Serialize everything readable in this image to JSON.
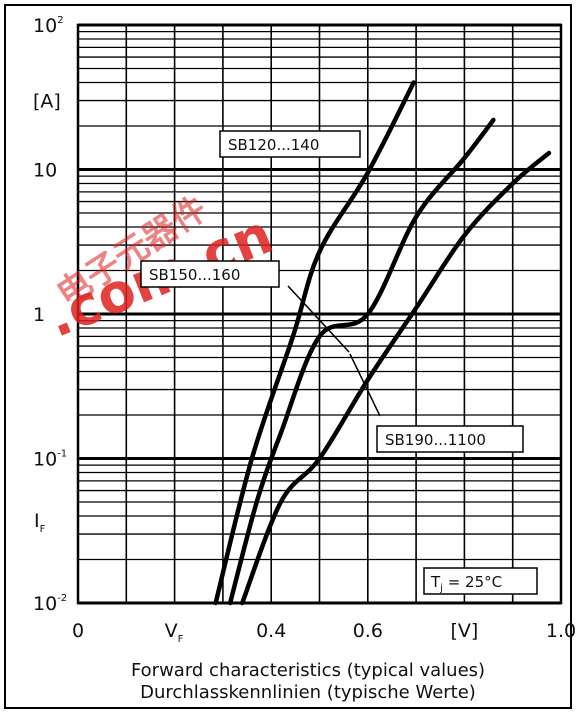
{
  "chart_data": {
    "type": "line",
    "y_scale": "log",
    "grid": true,
    "xlim": [
      0,
      1.0
    ],
    "ylim": [
      0.01,
      100
    ],
    "x_ticks": [
      "0",
      "0.4",
      "0.6",
      "[V]",
      "1.0"
    ],
    "x_unit_label": "V",
    "x_unit_sub": "F",
    "y_ticks": [
      {
        "base": "10",
        "exp": "2"
      },
      {
        "base": "[A]",
        "exp": ""
      },
      {
        "base": "10",
        "exp": ""
      },
      {
        "base": "1",
        "exp": ""
      },
      {
        "base": "10",
        "exp": "-1"
      },
      {
        "base": "10",
        "exp": "-2"
      }
    ],
    "y_unit_label": "I",
    "y_unit_sub": "F",
    "caption_line1": "Forward characteristics (typical values)",
    "caption_line2": "Durchlasskennlinien (typische Werte)",
    "annotation": {
      "prefix": "T",
      "sub": "j",
      "suffix": " = 25°C"
    },
    "series": [
      {
        "name": "SB120...140",
        "points": [
          [
            0.285,
            0.01
          ],
          [
            0.36,
            0.1
          ],
          [
            0.445,
            0.7
          ],
          [
            0.5,
            2.7
          ],
          [
            0.6,
            9.5
          ],
          [
            0.695,
            40
          ]
        ]
      },
      {
        "name": "SB150...160",
        "points": [
          [
            0.315,
            0.01
          ],
          [
            0.37,
            0.05
          ],
          [
            0.42,
            0.15
          ],
          [
            0.5,
            0.7
          ],
          [
            0.6,
            1.0
          ],
          [
            0.7,
            4.7
          ],
          [
            0.8,
            12
          ],
          [
            0.86,
            22
          ]
        ]
      },
      {
        "name": "SB190...1100",
        "points": [
          [
            0.34,
            0.01
          ],
          [
            0.42,
            0.05
          ],
          [
            0.5,
            0.1
          ],
          [
            0.6,
            0.35
          ],
          [
            0.7,
            1.1
          ],
          [
            0.8,
            3.5
          ],
          [
            0.9,
            8
          ],
          [
            0.975,
            13
          ]
        ]
      }
    ]
  },
  "watermark": {
    "line1": "电子元器件",
    "line2": ".com.cn",
    "color": "#e02020"
  }
}
